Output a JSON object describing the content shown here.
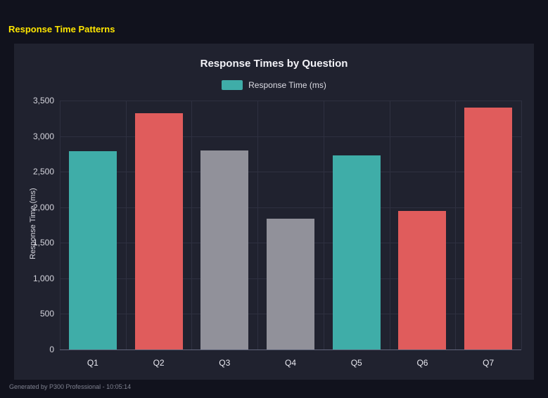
{
  "page": {
    "title": "Response Time Patterns",
    "footer": "Generated by P300 Professional - 10:05:14"
  },
  "chart_data": {
    "type": "bar",
    "title": "Response Times by Question",
    "legend": [
      {
        "label": "Response Time (ms)",
        "color": "#3fada8"
      }
    ],
    "legend_position": "top",
    "categories": [
      "Q1",
      "Q2",
      "Q3",
      "Q4",
      "Q5",
      "Q6",
      "Q7"
    ],
    "values": [
      2790,
      3320,
      2800,
      1840,
      2730,
      1950,
      3400
    ],
    "bar_colors": [
      "#3fada8",
      "#e05c5c",
      "#91919a",
      "#91919a",
      "#3fada8",
      "#e05c5c",
      "#e05c5c"
    ],
    "xlabel": "",
    "ylabel": "Response Time (ms)",
    "ylim": [
      0,
      3500
    ],
    "ytick_step": 500,
    "grid": true
  }
}
